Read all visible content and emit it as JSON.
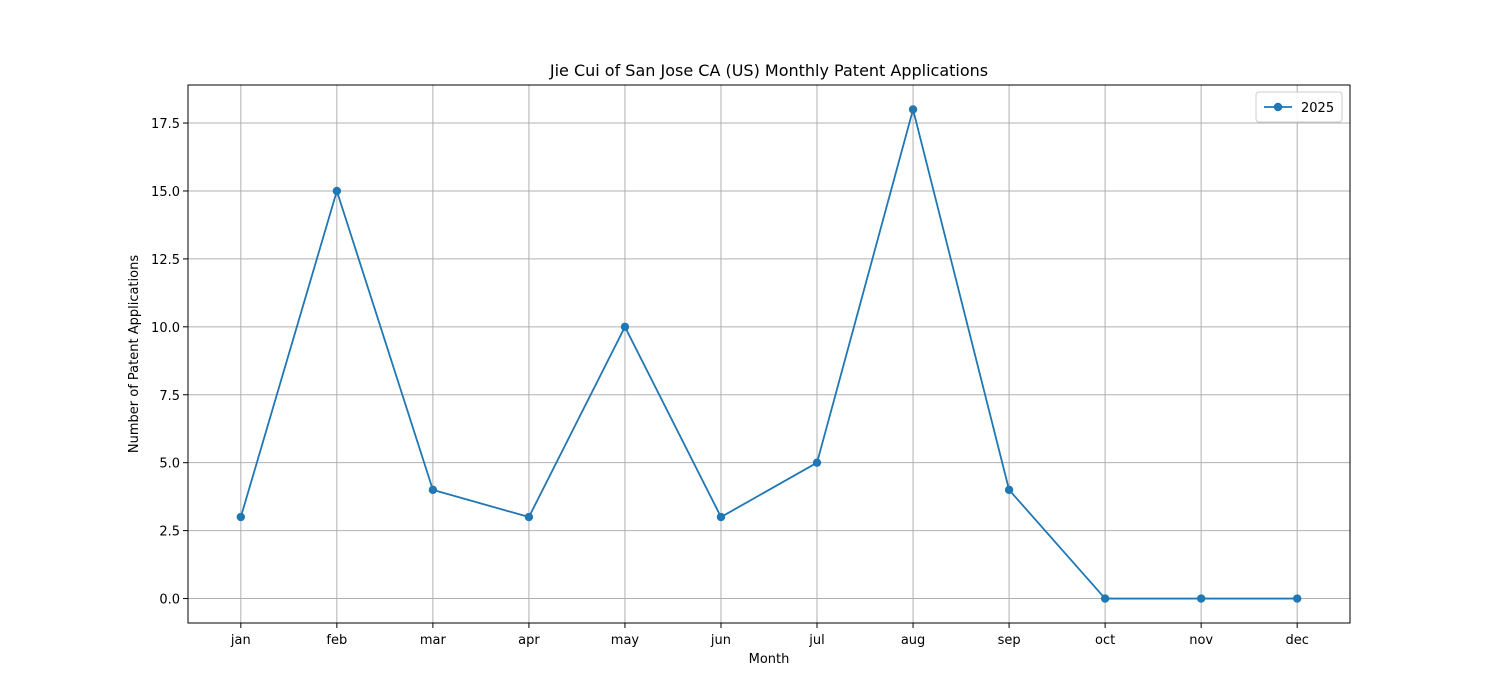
{
  "chart_data": {
    "type": "line",
    "title": "Jie Cui of San Jose CA (US) Monthly Patent Applications",
    "xlabel": "Month",
    "ylabel": "Number of Patent Applications",
    "categories": [
      "jan",
      "feb",
      "mar",
      "apr",
      "may",
      "jun",
      "jul",
      "aug",
      "sep",
      "oct",
      "nov",
      "dec"
    ],
    "series": [
      {
        "name": "2025",
        "values": [
          3,
          15,
          4,
          3,
          10,
          3,
          5,
          18,
          4,
          0,
          0,
          0
        ],
        "color": "#1f77b4"
      }
    ],
    "ylim": [
      -0.9,
      18.9
    ],
    "yticks": [
      0.0,
      2.5,
      5.0,
      7.5,
      10.0,
      12.5,
      15.0,
      17.5
    ],
    "ytick_labels": [
      "0.0",
      "2.5",
      "5.0",
      "7.5",
      "10.0",
      "12.5",
      "15.0",
      "17.5"
    ],
    "grid": true,
    "legend_position": "top-right",
    "grid_color": "#b0b0b0"
  }
}
